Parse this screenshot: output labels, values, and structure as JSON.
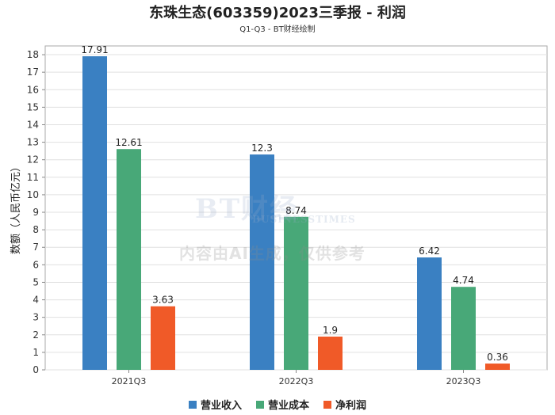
{
  "header": {
    "title": "东珠生态(603359)2023三季报 - 利润",
    "subtitle": "Q1-Q3 - BT财经绘制"
  },
  "watermark": {
    "logo": "BT财经",
    "logo_sub": "BUSINESSTIMES",
    "text": "内容由AI生成，仅供参考"
  },
  "chart_data": {
    "type": "bar",
    "title": "东珠生态(603359)2023三季报 - 利润",
    "subtitle": "Q1-Q3 - BT财经绘制",
    "xlabel": "",
    "ylabel": "数额（人民币亿元）",
    "categories": [
      "2021Q3",
      "2022Q3",
      "2023Q3"
    ],
    "series": [
      {
        "name": "营业收入",
        "color": "#3a80c2",
        "values": [
          17.91,
          12.3,
          6.42
        ]
      },
      {
        "name": "营业成本",
        "color": "#48a878",
        "values": [
          12.61,
          8.74,
          4.74
        ]
      },
      {
        "name": "净利润",
        "color": "#f05a28",
        "values": [
          3.63,
          1.9,
          0.36
        ]
      }
    ],
    "ylim": [
      0,
      18.5
    ],
    "yticks": [
      0,
      1,
      2,
      3,
      4,
      5,
      6,
      7,
      8,
      9,
      10,
      11,
      12,
      13,
      14,
      15,
      16,
      17,
      18
    ],
    "grid": true,
    "legend_position": "bottom"
  }
}
